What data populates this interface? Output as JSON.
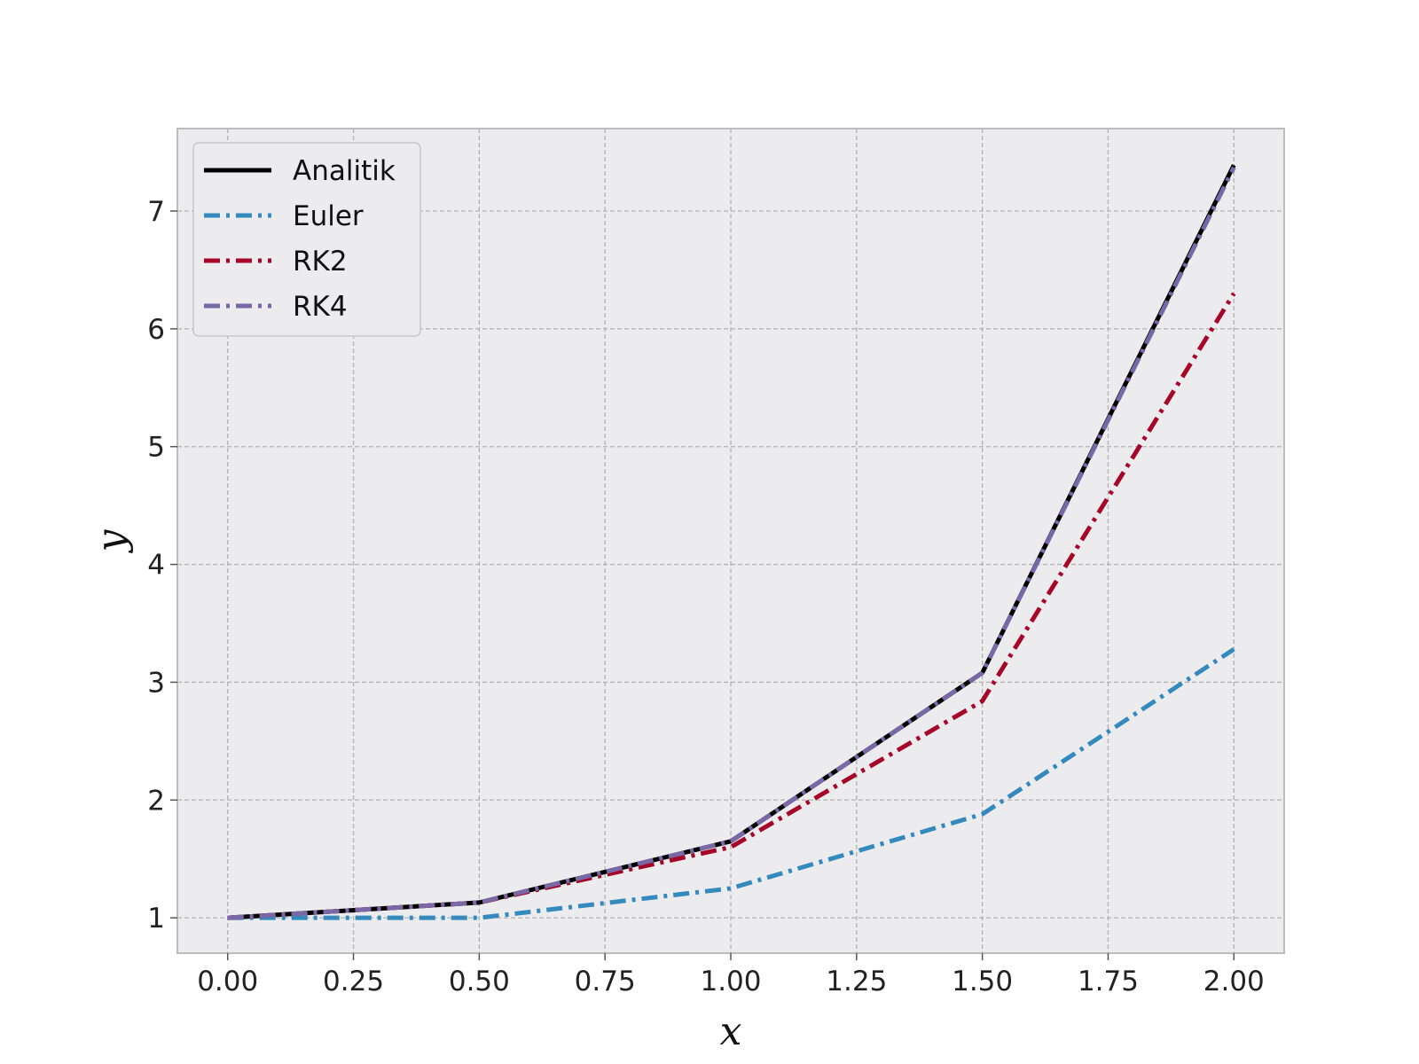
{
  "chart_data": {
    "type": "line",
    "title": "",
    "xlabel": "x",
    "ylabel": "y",
    "xlim": [
      -0.1,
      2.1
    ],
    "ylim": [
      0.7,
      7.7
    ],
    "x_ticks": [
      "0.00",
      "0.25",
      "0.50",
      "0.75",
      "1.00",
      "1.25",
      "1.50",
      "1.75",
      "2.00"
    ],
    "y_ticks": [
      "1",
      "2",
      "3",
      "4",
      "5",
      "6",
      "7"
    ],
    "grid": true,
    "legend_position": "top-left",
    "background_color": "#ececee",
    "series": [
      {
        "name": "Analitik",
        "color": "#000000",
        "style": "solid",
        "x": [
          0.0,
          0.5,
          1.0,
          1.5,
          2.0
        ],
        "y": [
          1.0,
          1.13,
          1.65,
          3.08,
          7.39
        ]
      },
      {
        "name": "Euler",
        "color": "#348abd",
        "style": "dashdot",
        "x": [
          0.0,
          0.5,
          1.0,
          1.5,
          2.0
        ],
        "y": [
          1.0,
          1.0,
          1.25,
          1.88,
          3.28
        ]
      },
      {
        "name": "RK2",
        "color": "#a60628",
        "style": "dashdot",
        "x": [
          0.0,
          0.5,
          1.0,
          1.5,
          2.0
        ],
        "y": [
          1.0,
          1.13,
          1.6,
          2.84,
          6.3
        ]
      },
      {
        "name": "RK4",
        "color": "#7a68a6",
        "style": "dashdot",
        "x": [
          0.0,
          0.5,
          1.0,
          1.5,
          2.0
        ],
        "y": [
          1.0,
          1.13,
          1.65,
          3.08,
          7.37
        ]
      }
    ]
  }
}
